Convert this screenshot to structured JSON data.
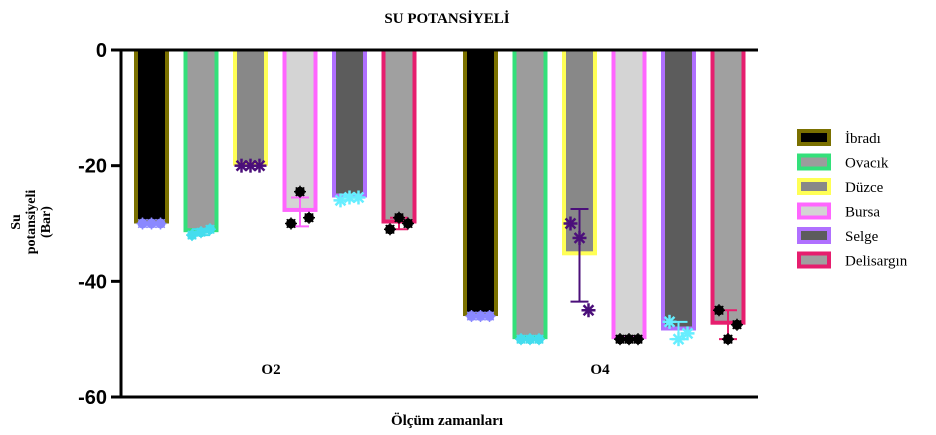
{
  "chart_data": {
    "type": "bar",
    "title": "SU POTANSİYELİ",
    "xlabel": "Ölçüm zamanları",
    "ylabel_lines": [
      "Su",
      "potansiyeli",
      "(Bar)"
    ],
    "ylim": [
      -60,
      0
    ],
    "yticks": [
      0,
      -20,
      -40,
      -60
    ],
    "ytick_labels": [
      "0",
      "-20",
      "-40",
      "-60"
    ],
    "categories": [
      "O2",
      "O4"
    ],
    "legend_position": "right",
    "series": [
      {
        "name": "İbradı",
        "values": [
          -30,
          -46
        ],
        "fill": "#000000",
        "border": "#7a7000",
        "points": [
          [
            -30,
            -30,
            -30
          ],
          [
            -46,
            -46,
            -46
          ]
        ],
        "marker": "dot",
        "marker_color": "#8a88ff",
        "error": [
          0,
          0
        ],
        "error_color": "#8a88ff"
      },
      {
        "name": "Ovacık",
        "values": [
          -31.5,
          -50
        ],
        "fill": "#9c9c9c",
        "border": "#33e07a",
        "points": [
          [
            -32,
            -31.5,
            -31
          ],
          [
            -50,
            -50,
            -50
          ]
        ],
        "marker": "dot",
        "marker_color": "#44ddee",
        "error": [
          0.5,
          0
        ],
        "error_color": "#44ddee"
      },
      {
        "name": "Düzce",
        "values": [
          -20,
          -35.5
        ],
        "fill": "#888888",
        "border": "#ffff55",
        "points": [
          [
            -20,
            -20,
            -20
          ],
          [
            -30,
            -32.5,
            -45
          ]
        ],
        "marker": "star",
        "marker_color": "#4b0f7a",
        "error": [
          0,
          8
        ],
        "error_color": "#4b0f7a"
      },
      {
        "name": "Bursa",
        "values": [
          -28,
          -50
        ],
        "fill": "#d4d4d4",
        "border": "#ff66ff",
        "points": [
          [
            -30,
            -24.5,
            -29
          ],
          [
            -50,
            -50,
            -50
          ]
        ],
        "marker": "dot",
        "marker_color": "#000000",
        "error": [
          2.5,
          0
        ],
        "error_color": "#ff66ff"
      },
      {
        "name": "Selge",
        "values": [
          -25.5,
          -48.5
        ],
        "fill": "#5c5c5c",
        "border": "#b070ff",
        "points": [
          [
            -26,
            -25.5,
            -25.5
          ],
          [
            -47,
            -50,
            -49
          ]
        ],
        "marker": "star",
        "marker_color": "#66eeff",
        "error": [
          0.5,
          1.5
        ],
        "error_color": "#66eeff"
      },
      {
        "name": "Delisargın",
        "values": [
          -30,
          -47.5
        ],
        "fill": "#a0a0a0",
        "border": "#e61e6e",
        "points": [
          [
            -31,
            -29,
            -30
          ],
          [
            -45,
            -50,
            -47.5
          ]
        ],
        "marker": "dot",
        "marker_color": "#000000",
        "error": [
          1,
          2.5
        ],
        "error_color": "#e61e6e"
      }
    ]
  }
}
